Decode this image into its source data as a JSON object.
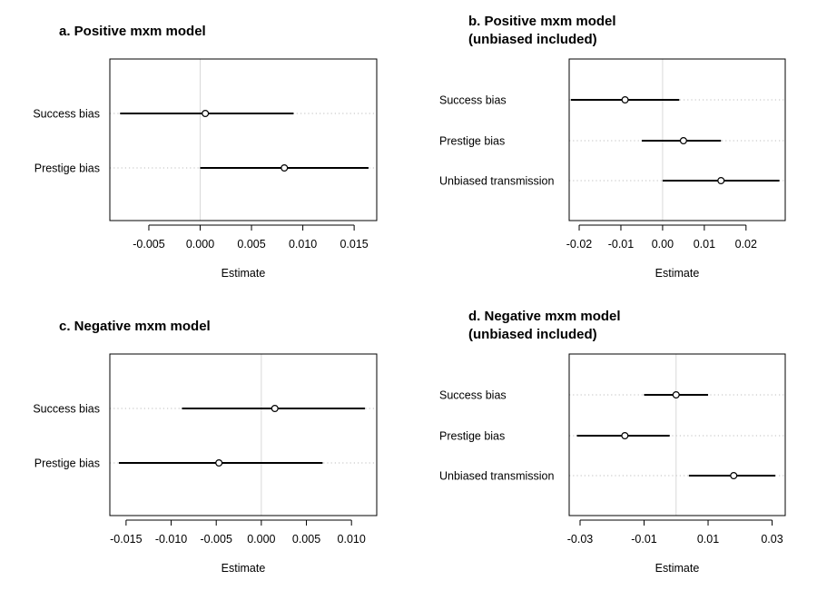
{
  "chart_data": [
    {
      "type": "forest",
      "title": "a. Positive mxm model",
      "title_line2": "",
      "xlabel": "Estimate",
      "xlim": [
        -0.0088,
        0.0172
      ],
      "xticks": [
        -0.005,
        0.0,
        0.005,
        0.01,
        0.015
      ],
      "xtick_labels": [
        "-0.005",
        "0.000",
        "0.005",
        "0.010",
        "0.015"
      ],
      "zero_line": 0,
      "grid": false,
      "rows": [
        {
          "label": "Success bias",
          "estimate": 0.0005,
          "lower": -0.0078,
          "upper": 0.0091
        },
        {
          "label": "Prestige bias",
          "estimate": 0.0082,
          "lower": 0.0,
          "upper": 0.0164
        }
      ]
    },
    {
      "type": "forest",
      "title": "b. Positive mxm model",
      "title_line2": "(unbiased included)",
      "xlabel": "Estimate",
      "xlim": [
        -0.0224,
        0.0294
      ],
      "xticks": [
        -0.02,
        -0.01,
        0.0,
        0.01,
        0.02
      ],
      "xtick_labels": [
        "-0.02",
        "-0.01",
        "0.00",
        "0.01",
        "0.02"
      ],
      "zero_line": 0,
      "grid": false,
      "rows": [
        {
          "label": "Success bias",
          "estimate": -0.009,
          "lower": -0.022,
          "upper": 0.004
        },
        {
          "label": "Prestige bias",
          "estimate": 0.005,
          "lower": -0.005,
          "upper": 0.014
        },
        {
          "label": "Unbiased transmission",
          "estimate": 0.014,
          "lower": 0.0,
          "upper": 0.028
        }
      ]
    },
    {
      "type": "forest",
      "title": "c. Negative mxm model",
      "title_line2": "",
      "xlabel": "Estimate",
      "xlim": [
        -0.0168,
        0.0128
      ],
      "xticks": [
        -0.015,
        -0.01,
        -0.005,
        0.0,
        0.005,
        0.01
      ],
      "xtick_labels": [
        "-0.015",
        "-0.010",
        "-0.005",
        "0.000",
        "0.005",
        "0.010"
      ],
      "zero_line": 0,
      "grid": false,
      "rows": [
        {
          "label": "Success bias",
          "estimate": 0.0015,
          "lower": -0.0088,
          "upper": 0.0115
        },
        {
          "label": "Prestige bias",
          "estimate": -0.0047,
          "lower": -0.0158,
          "upper": 0.0068
        }
      ]
    },
    {
      "type": "forest",
      "title": "d. Negative mxm model",
      "title_line2": "(unbiased included)",
      "xlabel": "Estimate",
      "xlim": [
        -0.0334,
        0.0341
      ],
      "xticks": [
        -0.03,
        -0.01,
        0.01,
        0.03
      ],
      "xtick_labels": [
        "-0.03",
        "-0.01",
        "0.01",
        "0.03"
      ],
      "zero_line": 0,
      "grid": false,
      "rows": [
        {
          "label": "Success bias",
          "estimate": 0.0,
          "lower": -0.01,
          "upper": 0.01
        },
        {
          "label": "Prestige bias",
          "estimate": -0.016,
          "lower": -0.031,
          "upper": -0.002
        },
        {
          "label": "Unbiased transmission",
          "estimate": 0.018,
          "lower": 0.004,
          "upper": 0.031
        }
      ]
    }
  ]
}
